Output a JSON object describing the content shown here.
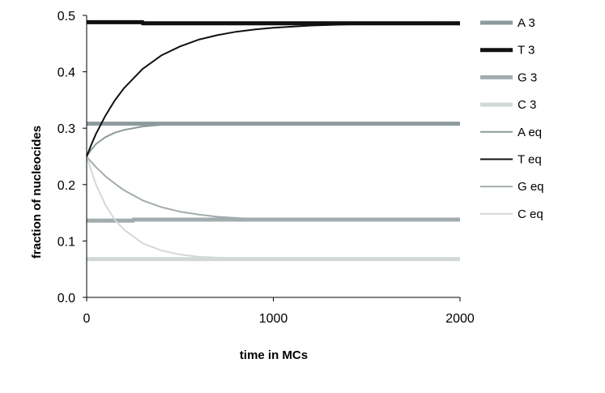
{
  "chart_data": {
    "type": "line",
    "xlabel": "time in MCs",
    "ylabel": "fraction of nucleocides",
    "xlim": [
      0,
      2000
    ],
    "ylim": [
      0,
      0.5
    ],
    "x_ticks": [
      "0",
      "1000",
      "2000"
    ],
    "y_ticks": [
      "0.0",
      "0.1",
      "0.2",
      "0.3",
      "0.4",
      "0.5"
    ],
    "grid": false,
    "legend_position": "right",
    "series": [
      {
        "name": "A 3",
        "color": "#8c9a9c",
        "width": 5,
        "points": [
          [
            0,
            0.308
          ],
          [
            2000,
            0.308
          ]
        ]
      },
      {
        "name": "T 3",
        "color": "#111111",
        "width": 5,
        "points": [
          [
            0,
            0.488
          ],
          [
            300,
            0.488
          ],
          [
            300,
            0.486
          ],
          [
            2000,
            0.486
          ]
        ]
      },
      {
        "name": "G 3",
        "color": "#a3acae",
        "width": 5,
        "points": [
          [
            0,
            0.136
          ],
          [
            250,
            0.136
          ],
          [
            250,
            0.138
          ],
          [
            2000,
            0.138
          ]
        ]
      },
      {
        "name": "C 3",
        "color": "#d2d8d8",
        "width": 5,
        "points": [
          [
            0,
            0.068
          ],
          [
            2000,
            0.068
          ]
        ]
      },
      {
        "name": "A eq",
        "color": "#8c9a9c",
        "width": 2,
        "points": [
          [
            0,
            0.25
          ],
          [
            25,
            0.262
          ],
          [
            50,
            0.272
          ],
          [
            100,
            0.284
          ],
          [
            150,
            0.292
          ],
          [
            200,
            0.297
          ],
          [
            300,
            0.303
          ],
          [
            400,
            0.306
          ],
          [
            500,
            0.308
          ],
          [
            700,
            0.309
          ],
          [
            1000,
            0.309
          ],
          [
            2000,
            0.309
          ]
        ]
      },
      {
        "name": "T eq",
        "color": "#111111",
        "width": 2,
        "points": [
          [
            0,
            0.25
          ],
          [
            25,
            0.271
          ],
          [
            50,
            0.29
          ],
          [
            100,
            0.322
          ],
          [
            150,
            0.349
          ],
          [
            200,
            0.371
          ],
          [
            300,
            0.405
          ],
          [
            400,
            0.429
          ],
          [
            500,
            0.445
          ],
          [
            600,
            0.457
          ],
          [
            700,
            0.465
          ],
          [
            800,
            0.471
          ],
          [
            900,
            0.475
          ],
          [
            1000,
            0.478
          ],
          [
            1200,
            0.482
          ],
          [
            1500,
            0.485
          ],
          [
            2000,
            0.486
          ]
        ]
      },
      {
        "name": "G eq",
        "color": "#a3acae",
        "width": 2,
        "points": [
          [
            0,
            0.25
          ],
          [
            25,
            0.24
          ],
          [
            50,
            0.231
          ],
          [
            100,
            0.215
          ],
          [
            150,
            0.202
          ],
          [
            200,
            0.19
          ],
          [
            300,
            0.172
          ],
          [
            400,
            0.16
          ],
          [
            500,
            0.152
          ],
          [
            600,
            0.147
          ],
          [
            700,
            0.143
          ],
          [
            850,
            0.14
          ],
          [
            1000,
            0.139
          ],
          [
            2000,
            0.138
          ]
        ]
      },
      {
        "name": "C eq",
        "color": "#d2d8d8",
        "width": 2,
        "points": [
          [
            0,
            0.25
          ],
          [
            25,
            0.224
          ],
          [
            50,
            0.2
          ],
          [
            100,
            0.164
          ],
          [
            150,
            0.138
          ],
          [
            200,
            0.12
          ],
          [
            300,
            0.096
          ],
          [
            400,
            0.083
          ],
          [
            500,
            0.076
          ],
          [
            600,
            0.072
          ],
          [
            800,
            0.069
          ],
          [
            1000,
            0.068
          ],
          [
            2000,
            0.068
          ]
        ]
      }
    ]
  }
}
